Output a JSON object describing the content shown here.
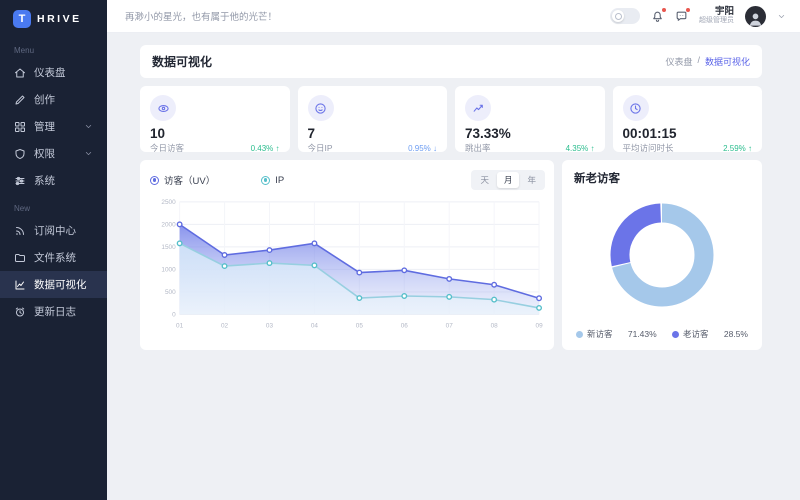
{
  "sidebar": {
    "logo_letter": "T",
    "logo_text": "HRIVE",
    "sections": [
      {
        "label": "Menu",
        "items": [
          {
            "label": "仪表盘",
            "icon": "home-icon",
            "active": false,
            "expandable": false
          },
          {
            "label": "创作",
            "icon": "pencil-icon",
            "active": false,
            "expandable": false
          },
          {
            "label": "管理",
            "icon": "grid-icon",
            "active": false,
            "expandable": true
          },
          {
            "label": "权限",
            "icon": "shield-icon",
            "active": false,
            "expandable": true
          },
          {
            "label": "系统",
            "icon": "sliders-icon",
            "active": false,
            "expandable": false
          }
        ]
      },
      {
        "label": "New",
        "items": [
          {
            "label": "订阅中心",
            "icon": "rss-icon",
            "active": false,
            "expandable": false
          },
          {
            "label": "文件系统",
            "icon": "folder-icon",
            "active": false,
            "expandable": false
          },
          {
            "label": "数据可视化",
            "icon": "line-chart-icon",
            "active": true,
            "expandable": false
          },
          {
            "label": "更新日志",
            "icon": "history-icon",
            "active": false,
            "expandable": false
          }
        ]
      }
    ]
  },
  "header": {
    "motto": "再渺小的星光，也有属于他的光芒！",
    "notifications": {
      "bell_has_badge": true,
      "chat_has_badge": true
    },
    "user": {
      "name": "宇阳",
      "role": "超级管理员"
    }
  },
  "page": {
    "title": "数据可视化",
    "breadcrumb": {
      "root": "仪表盘",
      "separator": "/",
      "current": "数据可视化"
    }
  },
  "stats": [
    {
      "icon": "eye-icon",
      "value": "10",
      "label": "今日访客",
      "delta_text": "0.43% ↑",
      "direction": "up"
    },
    {
      "icon": "smiley-icon",
      "value": "7",
      "label": "今日IP",
      "delta_text": "0.95% ↓",
      "direction": "down"
    },
    {
      "icon": "trend-icon",
      "value": "73.33%",
      "label": "跳出率",
      "delta_text": "4.35% ↑",
      "direction": "up"
    },
    {
      "icon": "clock-icon",
      "value": "00:01:15",
      "label": "平均访问时长",
      "delta_text": "2.59% ↑",
      "direction": "up"
    }
  ],
  "chart_data": [
    {
      "type": "area",
      "x": [
        "01",
        "02",
        "03",
        "04",
        "05",
        "06",
        "07",
        "08",
        "09"
      ],
      "series": [
        {
          "name": "访客（UV）",
          "values": [
            2000,
            1320,
            1430,
            1580,
            930,
            980,
            790,
            660,
            360
          ],
          "color": "#5f6ce0",
          "dot_color": "#5f6ce0"
        },
        {
          "name": "IP",
          "values": [
            1580,
            1075,
            1140,
            1090,
            365,
            410,
            390,
            330,
            145
          ],
          "color": "#97cfe0",
          "dot_color": "#56bfca"
        }
      ],
      "legend": [
        {
          "label": "访客（UV）",
          "color": "#5f6ce0"
        },
        {
          "label": "IP",
          "color": "#56bfca"
        }
      ],
      "ylim": [
        0,
        2500
      ],
      "yticks": [
        0,
        500,
        1000,
        1500,
        2000,
        2500
      ],
      "grid": true,
      "range_tabs": [
        "天",
        "月",
        "年"
      ],
      "selected_tab": "月"
    },
    {
      "type": "pie",
      "title": "新老访客",
      "slices": [
        {
          "label": "新访客",
          "value": 71.43,
          "pct_text": "71.43%",
          "color": "#a5c8ea"
        },
        {
          "label": "老访客",
          "value": 28.5,
          "pct_text": "28.5%",
          "color": "#6b74e8"
        }
      ],
      "legend_position": "bottom",
      "donut": true
    }
  ]
}
